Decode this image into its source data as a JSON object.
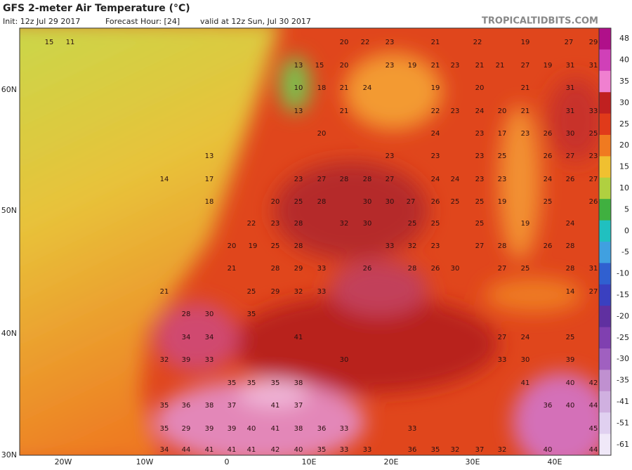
{
  "header": {
    "title": "GFS 2-meter Air Temperature (°C)",
    "init": "Init: 12z Jul 29 2017",
    "forecast_hour": "Forecast Hour: [24]",
    "valid": "valid at 12z Sun, Jul 30 2017",
    "brand": "TROPICALTIDBITS.COM"
  },
  "axes": {
    "lat_labels": [
      "60N",
      "50N",
      "40N",
      "30N"
    ],
    "lon_labels": [
      "20W",
      "10W",
      "0",
      "10E",
      "20E",
      "30E",
      "40E"
    ]
  },
  "colorbar": {
    "ticks": [
      "48",
      "40",
      "35",
      "30",
      "25",
      "20",
      "15",
      "10",
      "5",
      "0",
      "-5",
      "-10",
      "-15",
      "-20",
      "-25",
      "-30",
      "-35",
      "-41",
      "-51",
      "-61"
    ]
  },
  "map": {
    "temps": [
      15,
      11,
      20,
      22,
      23,
      21,
      22,
      19,
      27,
      29,
      13,
      15,
      20,
      23,
      19,
      21,
      23,
      21,
      21,
      27,
      19,
      31,
      31,
      10,
      18,
      21,
      24,
      19,
      20,
      21,
      31,
      13,
      21,
      22,
      23,
      24,
      20,
      21,
      31,
      33,
      20,
      24,
      23,
      17,
      23,
      26,
      30,
      25,
      13,
      23,
      23,
      23,
      25,
      26,
      27,
      23,
      14,
      17,
      23,
      27,
      28,
      28,
      27,
      24,
      24,
      23,
      23,
      24,
      26,
      27,
      18,
      20,
      25,
      28,
      30,
      30,
      27,
      26,
      25,
      25,
      19,
      25,
      26,
      22,
      23,
      28,
      32,
      30,
      25,
      25,
      25,
      19,
      24,
      20,
      19,
      25,
      28,
      33,
      32,
      23,
      27,
      28,
      26,
      28,
      21,
      28,
      29,
      33,
      26,
      28,
      26,
      30,
      27,
      25,
      28,
      31,
      21,
      25,
      29,
      32,
      33,
      14,
      27,
      28,
      30,
      35,
      34,
      34,
      41,
      27,
      24,
      25,
      32,
      39,
      33,
      30,
      33,
      30,
      39,
      35,
      35,
      35,
      38,
      41,
      40,
      42,
      35,
      36,
      38,
      37,
      41,
      37,
      36,
      40,
      44,
      35,
      29,
      39,
      39,
      40,
      41,
      38,
      36,
      33,
      33,
      45,
      34,
      44,
      41,
      41,
      41,
      42,
      40,
      35,
      33,
      33,
      36,
      35,
      32,
      37,
      32,
      40,
      44
    ]
  }
}
